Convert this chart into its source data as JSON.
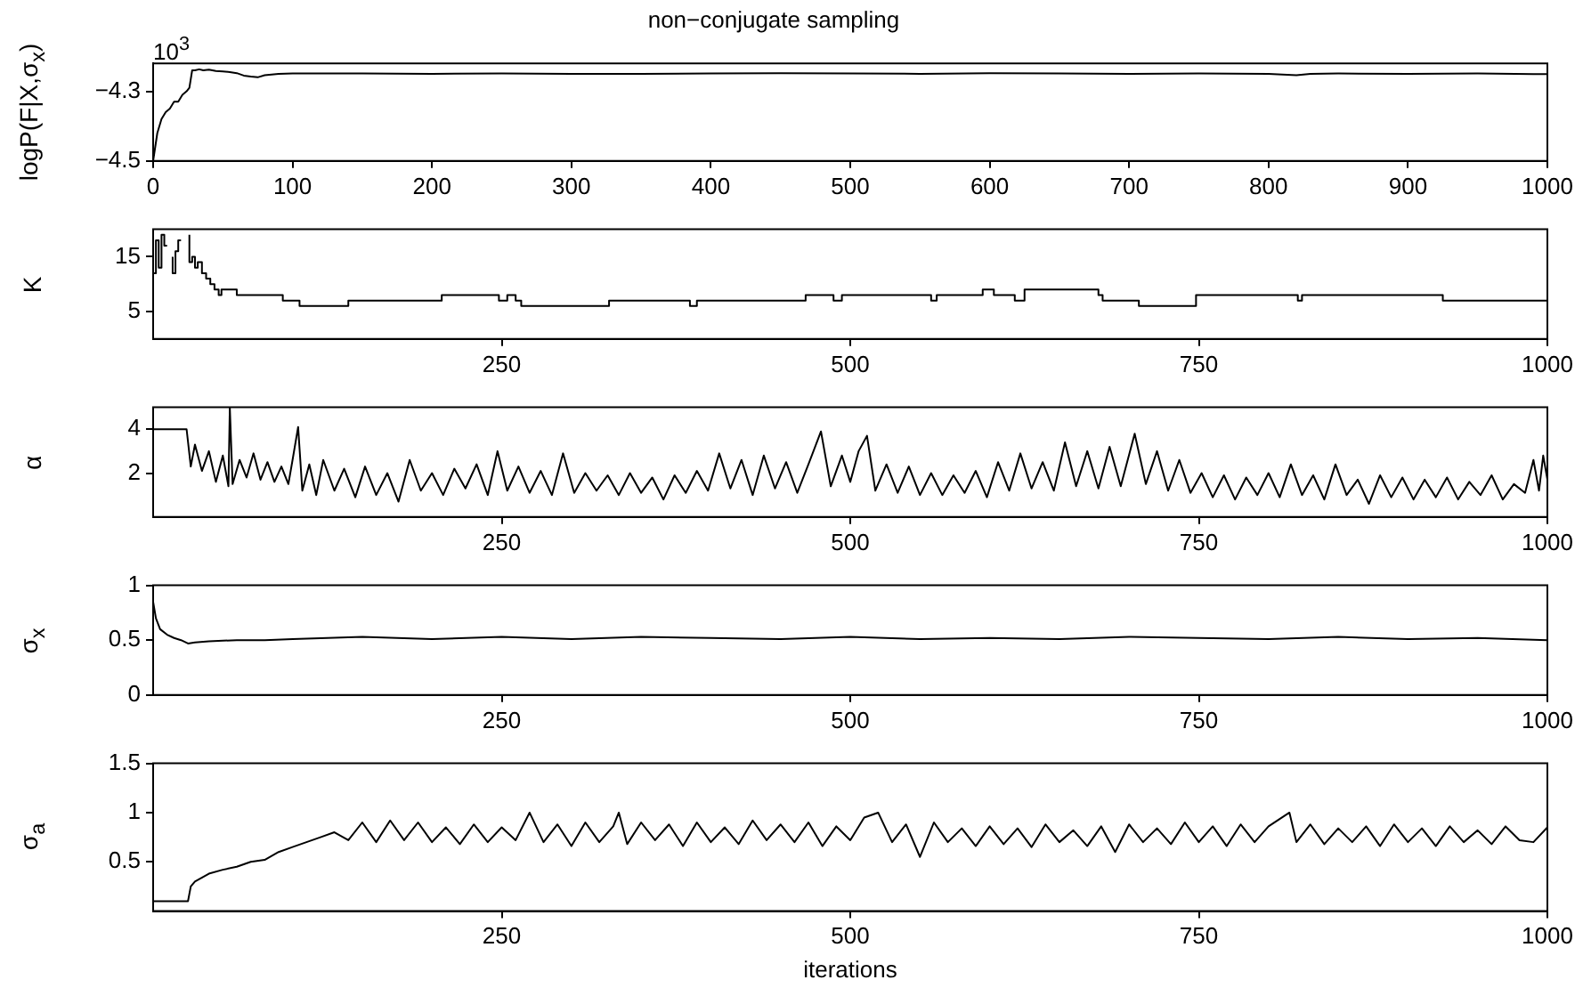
{
  "chart_data": [
    {
      "type": "line",
      "title": "non−conjugate sampling",
      "ylabel": "logP(F|X,σ$_{x}$)",
      "annotations": [
        "10$^{3}$"
      ],
      "marker": "none",
      "color": "#000000",
      "x": [
        0,
        3,
        6,
        9,
        12,
        15,
        18,
        21,
        24,
        26,
        28,
        30,
        33,
        36,
        40,
        45,
        50,
        55,
        60,
        65,
        70,
        75,
        80,
        90,
        100,
        150,
        200,
        250,
        300,
        350,
        400,
        450,
        500,
        550,
        600,
        650,
        700,
        750,
        800,
        820,
        830,
        850,
        900,
        950,
        990,
        1000
      ],
      "values": [
        -4.5,
        -4.42,
        -4.38,
        -4.36,
        -4.35,
        -4.33,
        -4.33,
        -4.31,
        -4.3,
        -4.29,
        -4.24,
        -4.24,
        -4.237,
        -4.24,
        -4.238,
        -4.242,
        -4.243,
        -4.245,
        -4.248,
        -4.255,
        -4.258,
        -4.26,
        -4.254,
        -4.25,
        -4.249,
        -4.249,
        -4.25,
        -4.249,
        -4.25,
        -4.25,
        -4.249,
        -4.248,
        -4.249,
        -4.25,
        -4.248,
        -4.249,
        -4.25,
        -4.249,
        -4.25,
        -4.254,
        -4.25,
        -4.249,
        -4.25,
        -4.249,
        -4.251,
        -4.251
      ],
      "xlim": [
        0,
        1000
      ],
      "xticks": [
        0,
        100,
        200,
        300,
        400,
        500,
        600,
        700,
        800,
        900,
        1000
      ],
      "ylim": [
        -4.5,
        -4.22
      ],
      "yticks": [
        {
          "value": -4.5,
          "label": "−4.5"
        },
        {
          "value": -4.3,
          "label": "−4.3"
        }
      ]
    },
    {
      "type": "step",
      "ylabel": "K",
      "marker": "none",
      "color": "#000000",
      "x": [
        0,
        2,
        4,
        6,
        8,
        10,
        12,
        14,
        16,
        18,
        20,
        22,
        24,
        26,
        28,
        30,
        32,
        35,
        38,
        41,
        44,
        47,
        49,
        60,
        93,
        105,
        140,
        207,
        248,
        254,
        260,
        264,
        327,
        385,
        390,
        468,
        488,
        494,
        558,
        562,
        595,
        603,
        618,
        625,
        678,
        681,
        707,
        748,
        821,
        824,
        925,
        935,
        1000
      ],
      "values": [
        14,
        12,
        18,
        13,
        19,
        17,
        null,
        15,
        12,
        16,
        18,
        null,
        null,
        19,
        14,
        15,
        13,
        14,
        12,
        11,
        10,
        9,
        8,
        9,
        8,
        7,
        6,
        7,
        8,
        7,
        8,
        7,
        6,
        7,
        6,
        7,
        8,
        7,
        8,
        7,
        8,
        9,
        8,
        7,
        9,
        8,
        7,
        6,
        8,
        7,
        8,
        7,
        7
      ],
      "xlim": [
        0,
        1000
      ],
      "xticks": [
        250,
        500,
        750,
        1000
      ],
      "ylim": [
        0,
        20
      ],
      "yticks": [
        5,
        15
      ]
    },
    {
      "type": "line",
      "ylabel": "α",
      "marker": "none",
      "color": "#000000",
      "x": [
        0,
        24,
        27,
        30,
        35,
        40,
        45,
        50,
        54,
        55,
        57,
        62,
        67,
        72,
        77,
        82,
        87,
        92,
        97,
        100,
        104,
        107,
        112,
        117,
        122,
        130,
        137,
        145,
        152,
        160,
        168,
        176,
        184,
        192,
        200,
        208,
        216,
        224,
        232,
        240,
        247,
        254,
        262,
        270,
        278,
        286,
        294,
        302,
        310,
        318,
        326,
        334,
        342,
        350,
        358,
        366,
        374,
        382,
        390,
        398,
        406,
        414,
        422,
        430,
        438,
        446,
        454,
        462,
        470,
        479,
        486,
        494,
        500,
        506,
        512,
        518,
        526,
        534,
        542,
        550,
        558,
        566,
        574,
        582,
        590,
        598,
        606,
        614,
        622,
        630,
        638,
        646,
        654,
        662,
        670,
        678,
        686,
        694,
        704,
        712,
        720,
        728,
        736,
        744,
        752,
        760,
        768,
        776,
        784,
        792,
        800,
        808,
        816,
        824,
        832,
        840,
        848,
        856,
        864,
        872,
        880,
        888,
        896,
        904,
        912,
        920,
        928,
        936,
        944,
        952,
        960,
        968,
        976,
        984,
        990,
        994,
        997,
        1000
      ],
      "values": [
        4,
        4,
        2.3,
        3.3,
        2.1,
        3.0,
        1.6,
        2.8,
        1.4,
        5,
        1.5,
        2.6,
        1.8,
        2.9,
        1.7,
        2.5,
        1.6,
        2.3,
        1.5,
        2.6,
        4.1,
        1.2,
        2.4,
        1.0,
        2.6,
        1.2,
        2.2,
        0.9,
        2.3,
        1.0,
        2.0,
        0.7,
        2.6,
        1.2,
        2.0,
        1.0,
        2.2,
        1.3,
        2.4,
        1.0,
        3.0,
        1.2,
        2.3,
        1.1,
        2.1,
        1.0,
        2.9,
        1.1,
        2.0,
        1.2,
        1.9,
        1.0,
        2.0,
        1.1,
        1.8,
        0.8,
        1.9,
        1.1,
        2.1,
        1.2,
        2.9,
        1.3,
        2.6,
        1.0,
        2.8,
        1.3,
        2.5,
        1.1,
        2.4,
        3.9,
        1.4,
        2.8,
        1.6,
        3.0,
        3.7,
        1.2,
        2.4,
        1.1,
        2.3,
        1.0,
        2.0,
        1.0,
        1.9,
        1.1,
        2.1,
        0.9,
        2.5,
        1.2,
        2.9,
        1.3,
        2.5,
        1.2,
        3.4,
        1.4,
        3.0,
        1.3,
        3.2,
        1.4,
        3.8,
        1.5,
        3.0,
        1.2,
        2.6,
        1.1,
        2.0,
        0.9,
        1.9,
        0.8,
        1.8,
        1.0,
        2.0,
        0.9,
        2.4,
        1.0,
        1.9,
        0.8,
        2.4,
        1.0,
        1.7,
        0.6,
        1.9,
        0.9,
        1.8,
        0.8,
        1.7,
        0.9,
        1.8,
        0.8,
        1.6,
        1.0,
        1.9,
        0.8,
        1.5,
        1.1,
        2.6,
        1.2,
        2.8,
        1.7
      ],
      "xlim": [
        0,
        1000
      ],
      "xticks": [
        250,
        500,
        750,
        1000
      ],
      "ylim": [
        0,
        5
      ],
      "yticks": [
        2,
        4
      ]
    },
    {
      "type": "line",
      "ylabel": "σ$_{x}$",
      "marker": "none",
      "color": "#000000",
      "x": [
        0,
        2,
        5,
        10,
        15,
        20,
        25,
        30,
        40,
        60,
        80,
        100,
        150,
        200,
        250,
        300,
        350,
        400,
        450,
        500,
        550,
        600,
        650,
        700,
        750,
        800,
        850,
        900,
        950,
        1000
      ],
      "values": [
        0.85,
        0.7,
        0.6,
        0.55,
        0.52,
        0.5,
        0.47,
        0.48,
        0.49,
        0.5,
        0.5,
        0.51,
        0.53,
        0.51,
        0.53,
        0.51,
        0.53,
        0.52,
        0.51,
        0.53,
        0.51,
        0.52,
        0.51,
        0.53,
        0.52,
        0.51,
        0.53,
        0.51,
        0.52,
        0.5
      ],
      "xlim": [
        0,
        1000
      ],
      "xticks": [
        250,
        500,
        750,
        1000
      ],
      "ylim": [
        0,
        1
      ],
      "yticks": [
        0,
        0.5,
        1
      ]
    },
    {
      "type": "line",
      "ylabel": "σ$_{a}$",
      "xlabel": "iterations",
      "marker": "none",
      "color": "#000000",
      "x": [
        0,
        25,
        27,
        30,
        40,
        50,
        60,
        70,
        80,
        90,
        100,
        110,
        120,
        130,
        140,
        150,
        160,
        170,
        180,
        190,
        200,
        210,
        220,
        230,
        240,
        250,
        260,
        270,
        280,
        290,
        300,
        310,
        320,
        330,
        334,
        340,
        350,
        360,
        370,
        380,
        390,
        400,
        410,
        420,
        430,
        440,
        450,
        460,
        470,
        480,
        490,
        500,
        510,
        520,
        530,
        540,
        550,
        560,
        570,
        580,
        590,
        600,
        610,
        620,
        630,
        640,
        650,
        660,
        670,
        680,
        690,
        700,
        710,
        720,
        730,
        740,
        750,
        760,
        770,
        780,
        790,
        800,
        815,
        820,
        830,
        840,
        850,
        860,
        870,
        880,
        890,
        900,
        910,
        920,
        930,
        940,
        950,
        960,
        970,
        980,
        990,
        1000
      ],
      "values": [
        0.1,
        0.1,
        0.25,
        0.3,
        0.38,
        0.42,
        0.45,
        0.5,
        0.52,
        0.6,
        0.65,
        0.7,
        0.75,
        0.8,
        0.72,
        0.9,
        0.7,
        0.92,
        0.72,
        0.9,
        0.7,
        0.85,
        0.68,
        0.88,
        0.7,
        0.85,
        0.72,
        1.0,
        0.7,
        0.88,
        0.66,
        0.9,
        0.7,
        0.86,
        1.0,
        0.68,
        0.9,
        0.72,
        0.88,
        0.66,
        0.9,
        0.7,
        0.85,
        0.68,
        0.92,
        0.72,
        0.88,
        0.7,
        0.9,
        0.66,
        0.86,
        0.72,
        0.95,
        1.0,
        0.7,
        0.88,
        0.55,
        0.9,
        0.7,
        0.84,
        0.66,
        0.86,
        0.68,
        0.84,
        0.65,
        0.88,
        0.7,
        0.82,
        0.66,
        0.86,
        0.6,
        0.88,
        0.7,
        0.84,
        0.68,
        0.9,
        0.7,
        0.86,
        0.66,
        0.88,
        0.7,
        0.86,
        1.0,
        0.7,
        0.88,
        0.68,
        0.84,
        0.7,
        0.86,
        0.66,
        0.88,
        0.7,
        0.84,
        0.66,
        0.86,
        0.7,
        0.82,
        0.68,
        0.86,
        0.72,
        0.7,
        0.85
      ],
      "xlim": [
        0,
        1000
      ],
      "xticks": [
        250,
        500,
        750,
        1000
      ],
      "ylim": [
        0,
        1.5
      ],
      "yticks": [
        0.5,
        1,
        1.5
      ]
    }
  ]
}
